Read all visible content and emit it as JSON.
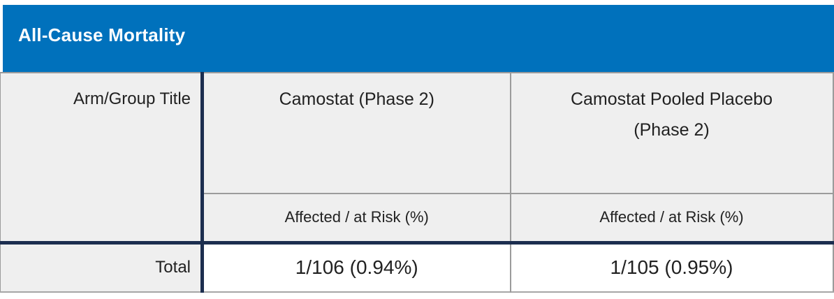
{
  "header": {
    "title": "All-Cause Mortality",
    "bg_color": "#0071bc",
    "text_color": "#ffffff"
  },
  "table": {
    "row_label_header": "Arm/Group Title",
    "columns": [
      {
        "title": "Camostat (Phase 2)",
        "subheader": "Affected / at Risk (%)"
      },
      {
        "title": "Camostat Pooled Placebo (Phase 2)",
        "subheader": "Affected / at Risk (%)"
      }
    ],
    "rows": [
      {
        "label": "Total",
        "values": [
          "1/106 (0.94%)",
          "1/105 (0.95%)"
        ]
      }
    ],
    "colors": {
      "navy_border": "#1c2e4f",
      "header_cell_bg": "#efefef",
      "grid_line_gray": "#9b9b9b",
      "value_cell_bg": "#ffffff"
    }
  }
}
